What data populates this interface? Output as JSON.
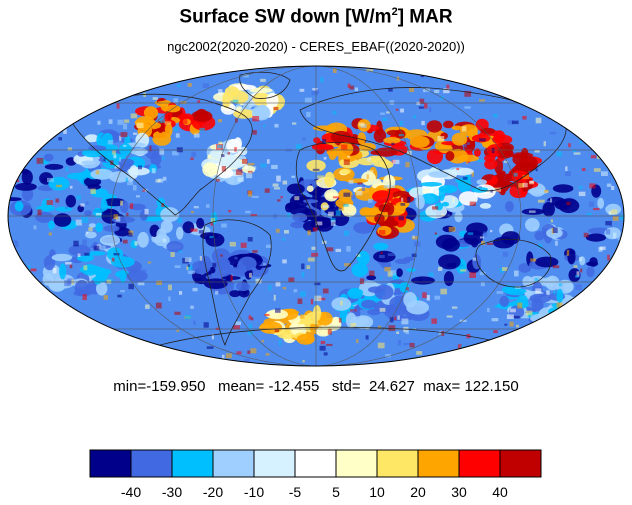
{
  "title": {
    "main": "Surface SW down [W/m",
    "sup": "2",
    "suffix": "]  MAR"
  },
  "subtitle": "ngc2002(2020-2020) - CERES_EBAF((2020-2020))",
  "stats": {
    "min_label": "min=",
    "min": "-159.950",
    "mean_label": "mean=",
    "mean": "-12.455",
    "std_label": "std=",
    "std": "24.627",
    "max_label": "max=",
    "max": "122.150"
  },
  "colorbar": {
    "colors": [
      "#00008b",
      "#4169e1",
      "#00bfff",
      "#9fcfff",
      "#d6f1ff",
      "#ffffff",
      "#ffffc8",
      "#ffe766",
      "#ffa500",
      "#ff0000",
      "#c00000"
    ],
    "labels": [
      "-40",
      "-30",
      "-20",
      "-10",
      "-5",
      "5",
      "10",
      "20",
      "30",
      "40"
    ]
  },
  "map": {
    "projection": "mollweide",
    "field": "difference ngc2002 minus CERES_EBAF",
    "units": "W/m2",
    "grid": true
  }
}
